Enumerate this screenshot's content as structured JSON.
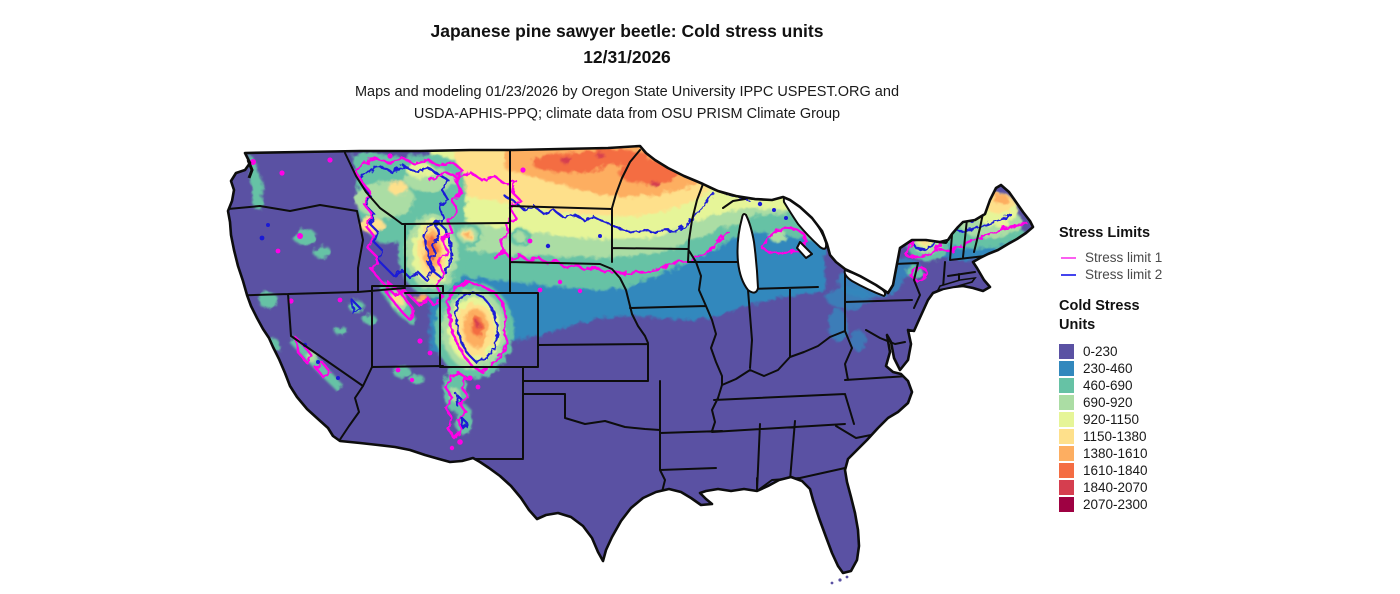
{
  "title": {
    "line1": "Japanese pine sawyer beetle: Cold stress units",
    "line2": "12/31/2026"
  },
  "subtitle": {
    "line1": "Maps and modeling 01/23/2026 by Oregon State University IPPC USPEST.ORG and",
    "line2": "USDA-APHIS-PPQ; climate data from OSU PRISM Climate Group"
  },
  "legend": {
    "stress_limits": {
      "title": "Stress Limits",
      "items": [
        {
          "label": "Stress limit 1",
          "color": "#fb5ff0"
        },
        {
          "label": "Stress limit 2",
          "color": "#4444ee"
        }
      ]
    },
    "cold_stress_units": {
      "title_line1": "Cold Stress",
      "title_line2": "Units",
      "classes": [
        {
          "label": "0-230",
          "color": "#5a51a3"
        },
        {
          "label": "230-460",
          "color": "#3288bd"
        },
        {
          "label": "460-690",
          "color": "#66c2a5"
        },
        {
          "label": "690-920",
          "color": "#abdda4"
        },
        {
          "label": "920-1150",
          "color": "#e6f598"
        },
        {
          "label": "1150-1380",
          "color": "#fee08b"
        },
        {
          "label": "1380-1610",
          "color": "#fdae61"
        },
        {
          "label": "1610-1840",
          "color": "#f46d43"
        },
        {
          "label": "1840-2070",
          "color": "#d53e4f"
        },
        {
          "label": "2070-2300",
          "color": "#9e0142"
        }
      ]
    }
  },
  "map": {
    "stress_limit_1_line_color": "#ff00e6",
    "stress_limit_2_line_color": "#1a1ad6",
    "base_fill_color": "#5a51a3",
    "boundary_color": "#0d0d0d"
  }
}
